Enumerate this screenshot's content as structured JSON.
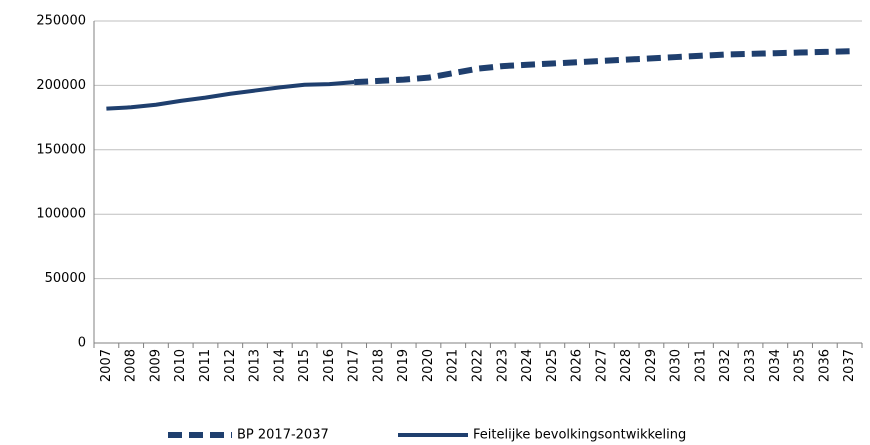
{
  "chart_data": {
    "type": "line",
    "categories": [
      "2007",
      "2008",
      "2009",
      "2010",
      "2011",
      "2012",
      "2013",
      "2014",
      "2015",
      "2016",
      "2017",
      "2018",
      "2019",
      "2020",
      "2021",
      "2022",
      "2023",
      "2024",
      "2025",
      "2026",
      "2027",
      "2028",
      "2029",
      "2030",
      "2031",
      "2032",
      "2033",
      "2034",
      "2035",
      "2036",
      "2037"
    ],
    "series": [
      {
        "name": "BP 2017-2037",
        "color": "#1f3f6e",
        "dashed": true,
        "values": [
          null,
          null,
          null,
          null,
          null,
          null,
          null,
          null,
          null,
          null,
          202500,
          203500,
          204500,
          206000,
          209500,
          213000,
          215000,
          216000,
          217000,
          218000,
          219000,
          220000,
          221000,
          222000,
          223000,
          224000,
          224500,
          225000,
          225500,
          226000,
          226500
        ]
      },
      {
        "name": "Feitelijke bevolkingsontwikkeling",
        "color": "#1f3f6e",
        "dashed": false,
        "values": [
          182000,
          183000,
          185000,
          188000,
          190500,
          193500,
          196000,
          198500,
          200500,
          201000,
          202500,
          null,
          null,
          null,
          null,
          null,
          null,
          null,
          null,
          null,
          null,
          null,
          null,
          null,
          null,
          null,
          null,
          null,
          null,
          null,
          null
        ]
      }
    ],
    "ylim": [
      0,
      250000
    ],
    "yticks": [
      0,
      50000,
      100000,
      150000,
      200000,
      250000
    ],
    "grid": true,
    "legend": "bottom"
  }
}
